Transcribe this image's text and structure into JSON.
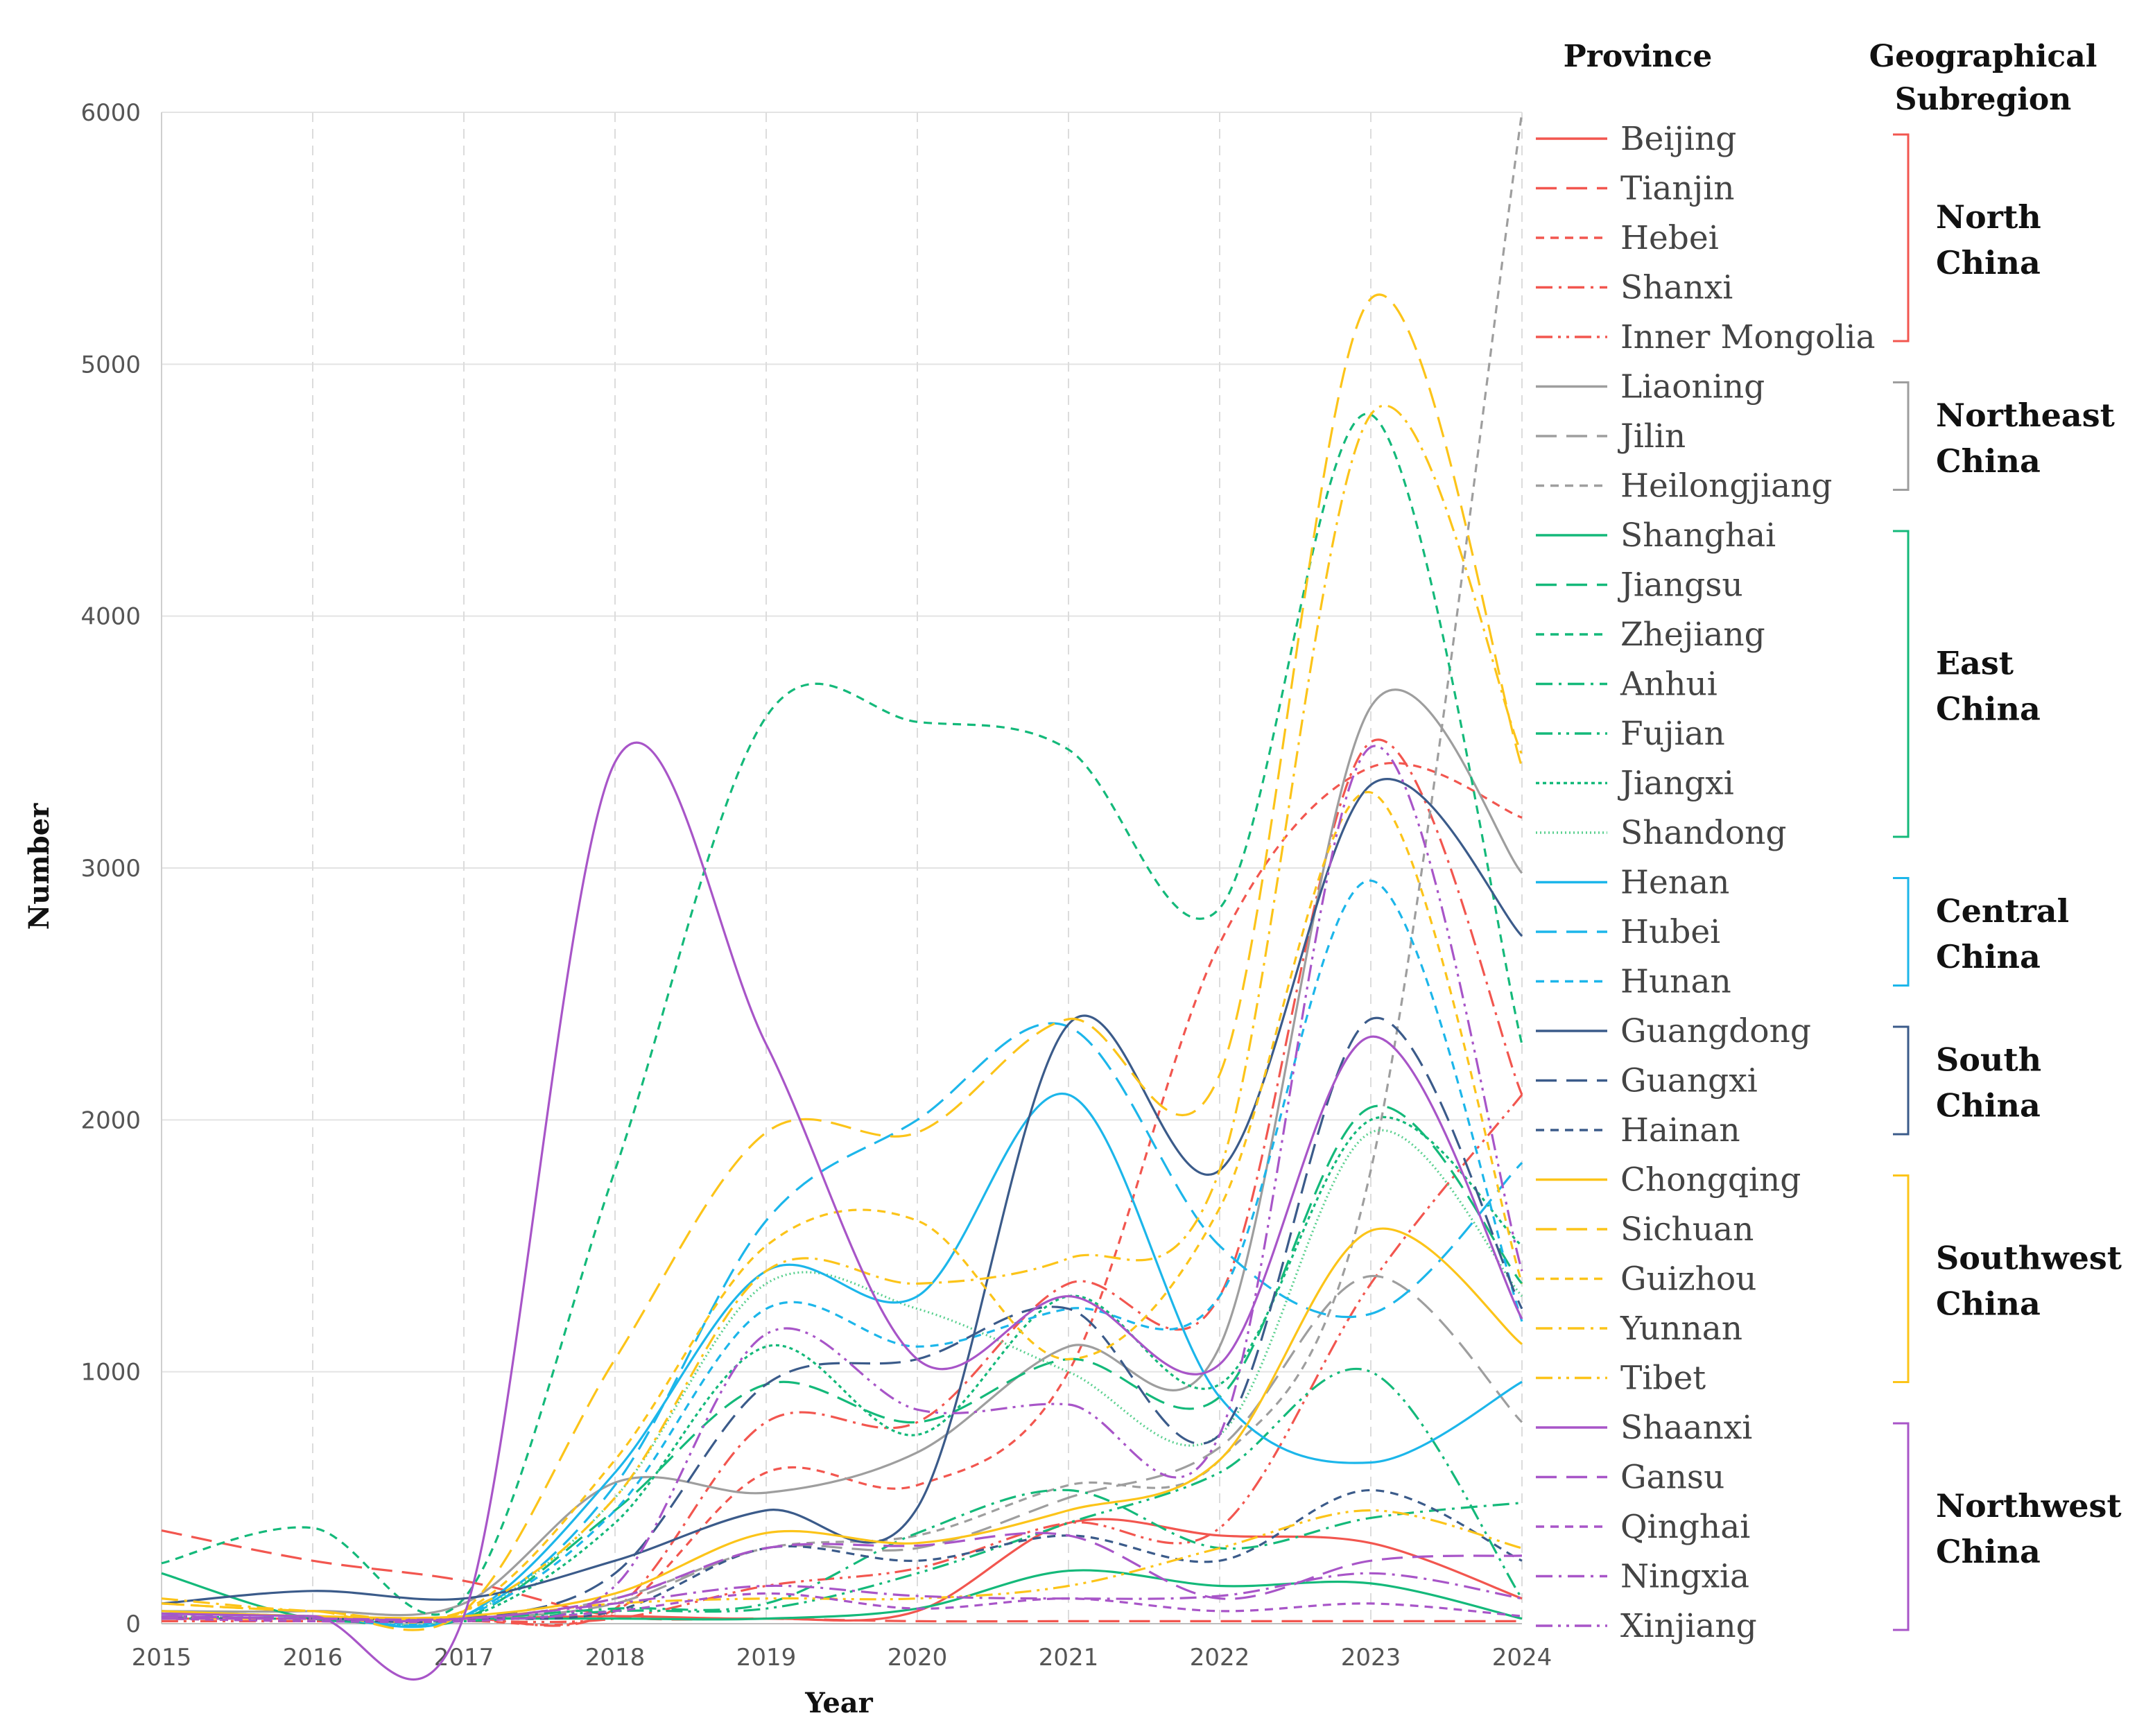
{
  "chart_data": {
    "type": "line",
    "title": "",
    "xlabel": "Year",
    "ylabel": "Number",
    "x": [
      2015,
      2016,
      2017,
      2018,
      2019,
      2020,
      2021,
      2022,
      2023,
      2024
    ],
    "ylim": [
      0,
      6000
    ],
    "yticks": [
      0,
      1000,
      2000,
      3000,
      4000,
      5000,
      6000
    ],
    "grid": "horizontal solid, vertical dashed",
    "legend_header": "Province",
    "region_header": [
      "Geographical",
      "Subregion"
    ],
    "series": [
      {
        "name": "Beijing",
        "color": "#f2564f",
        "dash": "solid",
        "values": [
          20,
          20,
          20,
          30,
          20,
          50,
          400,
          350,
          320,
          100
        ]
      },
      {
        "name": "Tianjin",
        "color": "#f2564f",
        "dash": "long",
        "values": [
          370,
          250,
          170,
          30,
          20,
          10,
          10,
          10,
          10,
          10
        ]
      },
      {
        "name": "Hebei",
        "color": "#f2564f",
        "dash": "short",
        "values": [
          20,
          10,
          10,
          50,
          600,
          550,
          1000,
          2700,
          3400,
          3200
        ]
      },
      {
        "name": "Shanxi",
        "color": "#f2564f",
        "dash": "dashdot",
        "values": [
          30,
          20,
          20,
          60,
          800,
          800,
          1350,
          1300,
          3500,
          2100
        ]
      },
      {
        "name": "Inner Mongolia",
        "color": "#f2564f",
        "dash": "dashdotdot",
        "values": [
          10,
          10,
          10,
          20,
          150,
          220,
          400,
          380,
          1350,
          2100
        ]
      },
      {
        "name": "Liaoning",
        "color": "#9e9e9e",
        "dash": "solid",
        "values": [
          50,
          50,
          80,
          560,
          520,
          680,
          1100,
          1100,
          3640,
          2980
        ]
      },
      {
        "name": "Jilin",
        "color": "#9e9e9e",
        "dash": "long",
        "values": [
          30,
          20,
          20,
          80,
          300,
          300,
          500,
          700,
          1380,
          800
        ]
      },
      {
        "name": "Heilongjiang",
        "color": "#9e9e9e",
        "dash": "short",
        "values": [
          30,
          20,
          20,
          100,
          300,
          350,
          550,
          650,
          1800,
          6000
        ]
      },
      {
        "name": "Shanghai",
        "color": "#14b97a",
        "dash": "solid",
        "values": [
          200,
          20,
          20,
          20,
          20,
          60,
          210,
          150,
          160,
          20
        ]
      },
      {
        "name": "Jiangsu",
        "color": "#14b97a",
        "dash": "long",
        "values": [
          30,
          20,
          20,
          450,
          950,
          800,
          1050,
          900,
          2050,
          1350
        ]
      },
      {
        "name": "Zhejiang",
        "color": "#14b97a",
        "dash": "short",
        "values": [
          240,
          380,
          100,
          1800,
          3600,
          3580,
          3470,
          2840,
          4800,
          2300
        ]
      },
      {
        "name": "Anhui",
        "color": "#14b97a",
        "dash": "dashdot",
        "values": [
          30,
          20,
          20,
          60,
          80,
          360,
          530,
          300,
          420,
          480
        ]
      },
      {
        "name": "Fujian",
        "color": "#14b97a",
        "dash": "dashdotdot",
        "values": [
          20,
          20,
          10,
          50,
          60,
          200,
          400,
          600,
          1000,
          100
        ]
      },
      {
        "name": "Jiangxi",
        "color": "#14b97a",
        "dash": "dot",
        "values": [
          20,
          20,
          20,
          400,
          1100,
          750,
          1300,
          950,
          2000,
          1500
        ]
      },
      {
        "name": "Shandong",
        "color": "#5ad08f",
        "dash": "dotfine",
        "values": [
          50,
          30,
          30,
          500,
          1350,
          1250,
          1000,
          750,
          1950,
          1300
        ]
      },
      {
        "name": "Henan",
        "color": "#1cb6ea",
        "dash": "solid",
        "values": [
          50,
          30,
          30,
          600,
          1400,
          1300,
          2100,
          900,
          640,
          960
        ]
      },
      {
        "name": "Hubei",
        "color": "#1cb6ea",
        "dash": "long",
        "values": [
          40,
          30,
          30,
          550,
          1600,
          2000,
          2370,
          1500,
          1230,
          1830
        ]
      },
      {
        "name": "Hunan",
        "color": "#1cb6ea",
        "dash": "short",
        "values": [
          40,
          30,
          30,
          450,
          1250,
          1100,
          1250,
          1300,
          2950,
          1200
        ]
      },
      {
        "name": "Guangdong",
        "color": "#3b5b8a",
        "dash": "solid",
        "values": [
          80,
          130,
          100,
          250,
          450,
          460,
          2380,
          1800,
          3330,
          2730
        ]
      },
      {
        "name": "Guangxi",
        "color": "#3b5b8a",
        "dash": "long",
        "values": [
          30,
          20,
          20,
          200,
          950,
          1050,
          1250,
          750,
          2400,
          1250
        ]
      },
      {
        "name": "Hainan",
        "color": "#3b5b8a",
        "dash": "short",
        "values": [
          20,
          20,
          20,
          50,
          300,
          250,
          350,
          250,
          530,
          250
        ]
      },
      {
        "name": "Chongqing",
        "color": "#fcc419",
        "dash": "solid",
        "values": [
          50,
          30,
          30,
          120,
          360,
          320,
          450,
          650,
          1560,
          1110
        ]
      },
      {
        "name": "Sichuan",
        "color": "#fcc419",
        "dash": "long",
        "values": [
          80,
          50,
          50,
          1050,
          1950,
          1950,
          2400,
          2180,
          5260,
          3400
        ]
      },
      {
        "name": "Guizhou",
        "color": "#fcc419",
        "dash": "short",
        "values": [
          80,
          50,
          50,
          650,
          1500,
          1600,
          1050,
          1650,
          3300,
          1350
        ]
      },
      {
        "name": "Yunnan",
        "color": "#fcc419",
        "dash": "dashdot",
        "values": [
          100,
          50,
          50,
          500,
          1400,
          1350,
          1450,
          1800,
          4800,
          3450
        ]
      },
      {
        "name": "Tibet",
        "color": "#fcc419",
        "dash": "dashdotdot",
        "values": [
          20,
          20,
          20,
          80,
          100,
          100,
          150,
          300,
          450,
          300
        ]
      },
      {
        "name": "Shaanxi",
        "color": "#a855c8",
        "dash": "solid",
        "values": [
          40,
          30,
          30,
          3420,
          2300,
          1050,
          1300,
          1030,
          2330,
          1210
        ]
      },
      {
        "name": "Gansu",
        "color": "#a855c8",
        "dash": "long",
        "values": [
          30,
          20,
          20,
          100,
          300,
          310,
          350,
          100,
          250,
          270
        ]
      },
      {
        "name": "Qinghai",
        "color": "#a855c8",
        "dash": "short",
        "values": [
          20,
          10,
          10,
          50,
          120,
          60,
          100,
          50,
          80,
          30
        ]
      },
      {
        "name": "Ningxia",
        "color": "#a855c8",
        "dash": "dashdot",
        "values": [
          20,
          20,
          20,
          80,
          150,
          110,
          100,
          110,
          200,
          100
        ]
      },
      {
        "name": "Xinjiang",
        "color": "#a855c8",
        "dash": "dashdotdot",
        "values": [
          30,
          20,
          20,
          150,
          1150,
          850,
          870,
          750,
          3480,
          1400
        ]
      }
    ],
    "regions": [
      {
        "name": [
          "North",
          "China"
        ],
        "color": "#f2564f",
        "first": 0,
        "last": 4
      },
      {
        "name": [
          "Northeast",
          "China"
        ],
        "color": "#9e9e9e",
        "first": 5,
        "last": 7
      },
      {
        "name": [
          "East",
          "China"
        ],
        "color": "#14b97a",
        "first": 8,
        "last": 14
      },
      {
        "name": [
          "Central",
          "China"
        ],
        "color": "#1cb6ea",
        "first": 15,
        "last": 17
      },
      {
        "name": [
          "South",
          "China"
        ],
        "color": "#3b5b8a",
        "first": 18,
        "last": 20
      },
      {
        "name": [
          "Southwest",
          "China"
        ],
        "color": "#fcc419",
        "first": 21,
        "last": 25
      },
      {
        "name": [
          "Northwest",
          "China"
        ],
        "color": "#a855c8",
        "first": 26,
        "last": 30
      }
    ]
  }
}
